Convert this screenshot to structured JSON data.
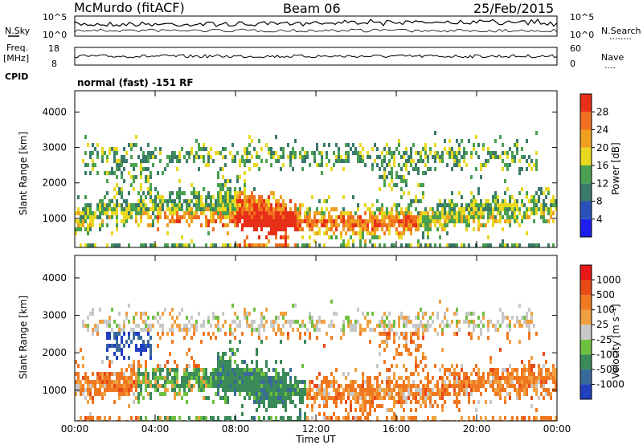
{
  "header": {
    "station": "McMurdo (fitACF)",
    "beam": "Beam 06",
    "date": "25/Feb/2015"
  },
  "top_panel": {
    "left_label": "N.Sky",
    "right_label": "N.Search",
    "right_dots": "........",
    "left_ticks": [
      "10^5",
      "10^0"
    ],
    "right_ticks": [
      "10^5",
      "10^0"
    ]
  },
  "freq_panel": {
    "left_label_1": "Freq.",
    "left_label_2": "[MHz]",
    "right_label": "Nave",
    "right_dots": "....",
    "left_ticks": [
      "18",
      "8"
    ],
    "right_ticks": [
      "60",
      "0"
    ]
  },
  "cpid": {
    "label": "CPID",
    "text": "normal (fast) -151 RF"
  },
  "chart_data": [
    {
      "type": "heatmap",
      "title": "",
      "ylabel": "Slant Range [km]",
      "xlabel": "",
      "yticks": [
        "1000",
        "2000",
        "3000",
        "4000"
      ],
      "ylim": [
        180,
        4600
      ],
      "xlim": [
        0,
        24
      ],
      "colorbar": {
        "label": "Power [dB]",
        "ticks": [
          "4",
          "8",
          "12",
          "16",
          "20",
          "24",
          "28"
        ],
        "colors": [
          "#1e1ef0",
          "#2a52b8",
          "#3a7a6a",
          "#48a050",
          "#e8d820",
          "#f0a020",
          "#f07020",
          "#e83018"
        ]
      }
    },
    {
      "type": "heatmap",
      "title": "",
      "ylabel": "Slant Range [km]",
      "xlabel": "Time UT",
      "yticks": [
        "1000",
        "2000",
        "3000",
        "4000"
      ],
      "ylim": [
        180,
        4600
      ],
      "xlim": [
        0,
        24
      ],
      "xticks": [
        "00:00",
        "04:00",
        "08:00",
        "12:00",
        "16:00",
        "20:00",
        "00:00"
      ],
      "colorbar": {
        "label": "Velocity [m s⁻¹]",
        "ticks": [
          "1000",
          "500",
          "100",
          "25",
          "-25",
          "-100",
          "-500",
          "-1000"
        ],
        "colors": [
          "#2040c0",
          "#3a6a9a",
          "#3a8a5a",
          "#70c040",
          "#c8c8c8",
          "#f0a040",
          "#f07820",
          "#e84a18",
          "#e81818"
        ]
      }
    }
  ]
}
